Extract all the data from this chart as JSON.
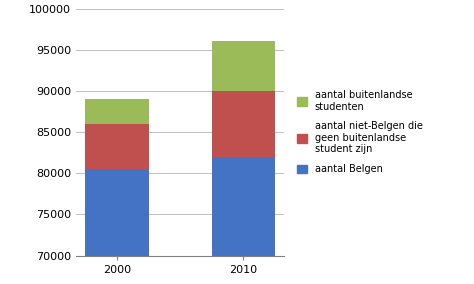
{
  "categories": [
    "2000",
    "2010"
  ],
  "belgen": [
    80500,
    82000
  ],
  "niet_belgen": [
    5500,
    8000
  ],
  "buitenlandse": [
    3000,
    6000
  ],
  "color_belgen": "#4472C4",
  "color_niet_belgen": "#C0504D",
  "color_buitenlandse": "#9BBB59",
  "ylim_min": 70000,
  "ylim_max": 100000,
  "yticks": [
    70000,
    75000,
    80000,
    85000,
    90000,
    95000,
    100000
  ],
  "legend_labels": [
    "aantal buitenlandse\nstudenten",
    "aantal niet-Belgen die\ngeen buitenlandse\nstudent zijn",
    "aantal Belgen"
  ],
  "bar_width": 0.5
}
